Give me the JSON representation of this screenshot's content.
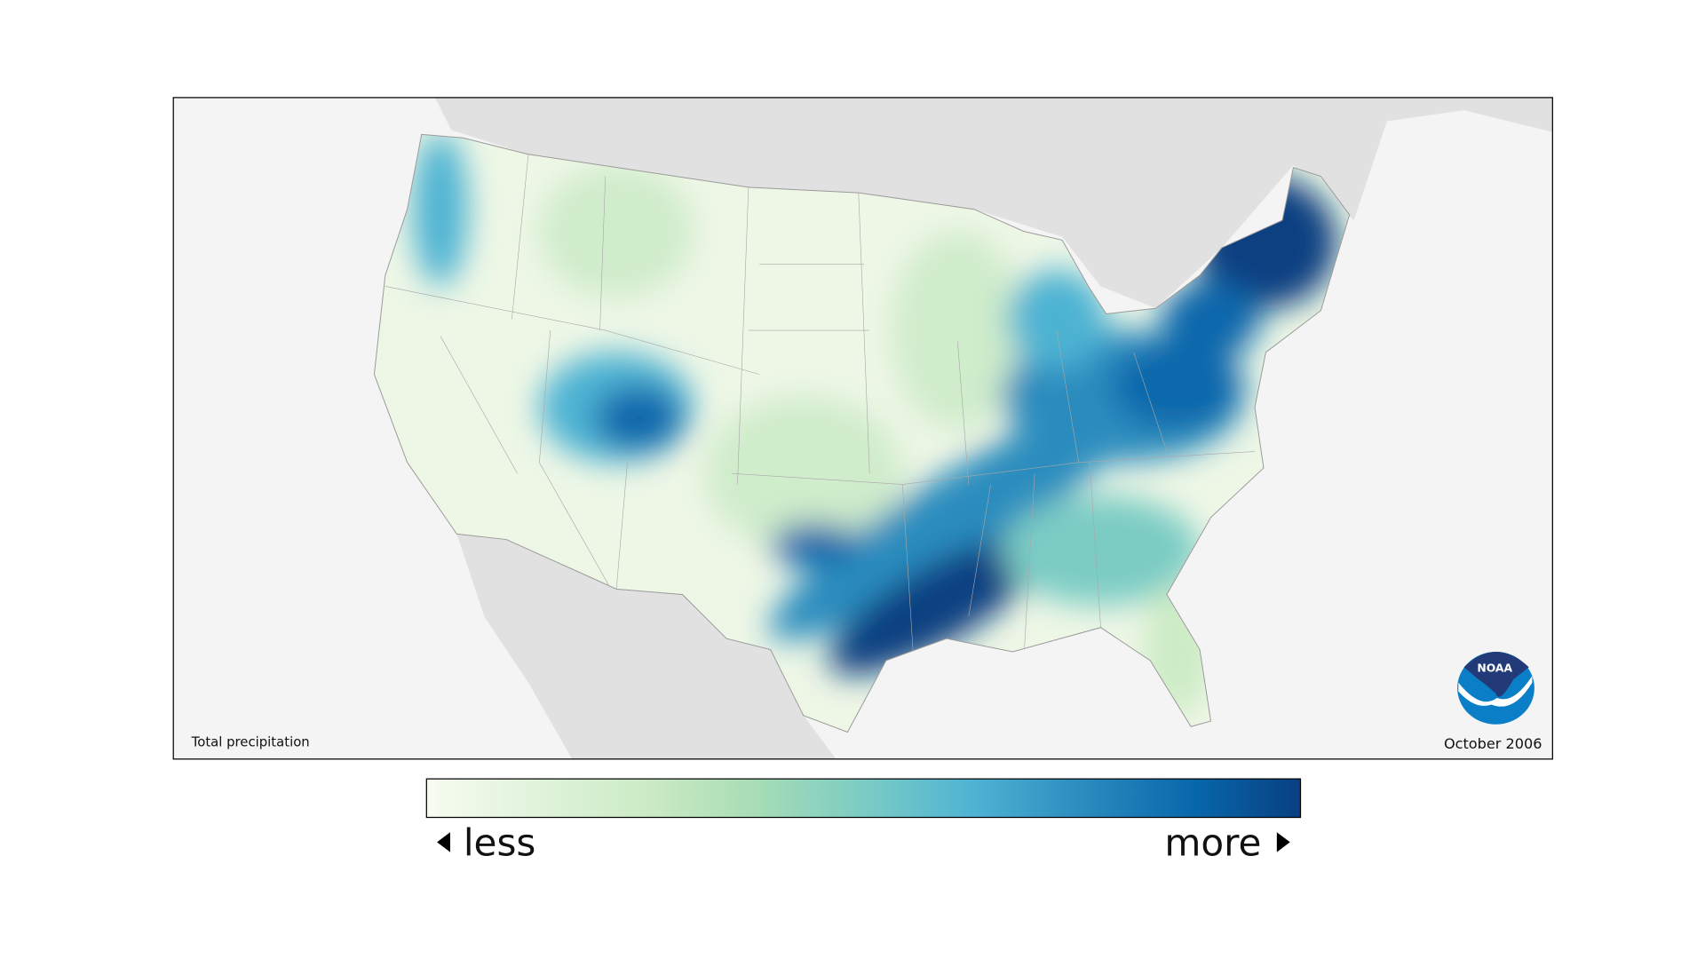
{
  "map": {
    "variable_label": "Total precipitation",
    "date_label": "October 2006",
    "logo_text": "NOAA"
  },
  "legend": {
    "less_label": "less",
    "more_label": "more",
    "colors": [
      "#f7fcf0",
      "#e0f3db",
      "#ccebc5",
      "#a8ddb5",
      "#7bccc4",
      "#4eb3d3",
      "#2b8cbe",
      "#0868ac",
      "#084081"
    ]
  },
  "colors": {
    "ocean": "#f4f4f4",
    "outside_land": "#e1e1e1",
    "noaa_dark": "#233a78",
    "noaa_light": "#0a7ec6"
  }
}
